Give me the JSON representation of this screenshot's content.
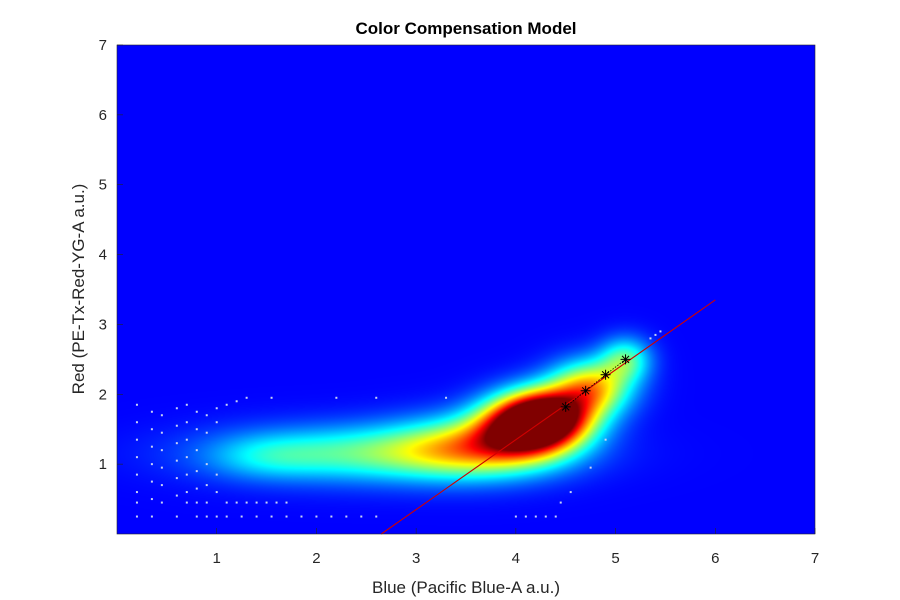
{
  "chart_data": {
    "type": "heatmap",
    "title": "Color Compensation Model",
    "xlabel": "Blue (Pacific Blue-A a.u.)",
    "ylabel": "Red (PE-Tx-Red-YG-A a.u.)",
    "xlim": [
      0,
      7
    ],
    "ylim": [
      0,
      7
    ],
    "xticks": [
      1,
      2,
      3,
      4,
      5,
      6,
      7
    ],
    "yticks": [
      1,
      2,
      3,
      4,
      5,
      6,
      7
    ],
    "colormap": "jet",
    "background_color": "#00008f",
    "density_blobs": [
      {
        "cx": 2.6,
        "cy": 1.15,
        "sx": 1.05,
        "sy": 0.28,
        "w": 0.38
      },
      {
        "cx": 3.6,
        "cy": 1.25,
        "sx": 0.55,
        "sy": 0.3,
        "w": 0.45
      },
      {
        "cx": 4.1,
        "cy": 1.5,
        "sx": 0.35,
        "sy": 0.28,
        "w": 0.75
      },
      {
        "cx": 4.3,
        "cy": 1.7,
        "sx": 0.33,
        "sy": 0.27,
        "w": 0.95
      },
      {
        "cx": 4.75,
        "cy": 2.1,
        "sx": 0.28,
        "sy": 0.27,
        "w": 0.6
      },
      {
        "cx": 5.1,
        "cy": 2.5,
        "sx": 0.18,
        "sy": 0.22,
        "w": 0.35
      },
      {
        "cx": 1.5,
        "cy": 1.1,
        "sx": 0.4,
        "sy": 0.22,
        "w": 0.12
      }
    ],
    "fit_line": {
      "x": [
        2.65,
        6.0
      ],
      "y": [
        0.0,
        3.35
      ],
      "color": "#d00000"
    },
    "markers": {
      "x": [
        4.5,
        4.7,
        4.9,
        5.1
      ],
      "y": [
        1.82,
        2.05,
        2.28,
        2.5
      ],
      "symbol": "*"
    },
    "sparse_points": [
      {
        "x": 0.2,
        "y": 1.85
      },
      {
        "x": 0.2,
        "y": 1.6
      },
      {
        "x": 0.2,
        "y": 1.35
      },
      {
        "x": 0.2,
        "y": 1.1
      },
      {
        "x": 0.2,
        "y": 0.85
      },
      {
        "x": 0.2,
        "y": 0.6
      },
      {
        "x": 0.2,
        "y": 0.45
      },
      {
        "x": 0.2,
        "y": 0.25
      },
      {
        "x": 0.35,
        "y": 1.75
      },
      {
        "x": 0.35,
        "y": 1.5
      },
      {
        "x": 0.35,
        "y": 1.25
      },
      {
        "x": 0.35,
        "y": 1.0
      },
      {
        "x": 0.35,
        "y": 0.75
      },
      {
        "x": 0.35,
        "y": 0.5
      },
      {
        "x": 0.35,
        "y": 0.25
      },
      {
        "x": 0.45,
        "y": 1.7
      },
      {
        "x": 0.45,
        "y": 1.45
      },
      {
        "x": 0.45,
        "y": 1.2
      },
      {
        "x": 0.45,
        "y": 0.95
      },
      {
        "x": 0.45,
        "y": 0.7
      },
      {
        "x": 0.45,
        "y": 0.45
      },
      {
        "x": 0.6,
        "y": 1.8
      },
      {
        "x": 0.6,
        "y": 1.55
      },
      {
        "x": 0.6,
        "y": 1.3
      },
      {
        "x": 0.6,
        "y": 1.05
      },
      {
        "x": 0.6,
        "y": 0.8
      },
      {
        "x": 0.6,
        "y": 0.55
      },
      {
        "x": 0.6,
        "y": 0.25
      },
      {
        "x": 0.7,
        "y": 1.85
      },
      {
        "x": 0.7,
        "y": 1.6
      },
      {
        "x": 0.7,
        "y": 1.35
      },
      {
        "x": 0.7,
        "y": 1.1
      },
      {
        "x": 0.7,
        "y": 0.85
      },
      {
        "x": 0.7,
        "y": 0.6
      },
      {
        "x": 0.7,
        "y": 0.45
      },
      {
        "x": 0.8,
        "y": 1.75
      },
      {
        "x": 0.8,
        "y": 1.5
      },
      {
        "x": 0.8,
        "y": 1.2
      },
      {
        "x": 0.8,
        "y": 0.9
      },
      {
        "x": 0.8,
        "y": 0.65
      },
      {
        "x": 0.8,
        "y": 0.45
      },
      {
        "x": 0.8,
        "y": 0.25
      },
      {
        "x": 0.9,
        "y": 1.7
      },
      {
        "x": 0.9,
        "y": 1.45
      },
      {
        "x": 0.9,
        "y": 1.0
      },
      {
        "x": 0.9,
        "y": 0.7
      },
      {
        "x": 0.9,
        "y": 0.45
      },
      {
        "x": 0.9,
        "y": 0.25
      },
      {
        "x": 1.0,
        "y": 1.8
      },
      {
        "x": 1.0,
        "y": 1.6
      },
      {
        "x": 1.0,
        "y": 0.85
      },
      {
        "x": 1.0,
        "y": 0.6
      },
      {
        "x": 1.0,
        "y": 0.25
      },
      {
        "x": 1.1,
        "y": 1.85
      },
      {
        "x": 1.2,
        "y": 1.9
      },
      {
        "x": 1.3,
        "y": 1.95
      },
      {
        "x": 1.55,
        "y": 1.95
      },
      {
        "x": 1.1,
        "y": 0.45
      },
      {
        "x": 1.2,
        "y": 0.45
      },
      {
        "x": 1.3,
        "y": 0.45
      },
      {
        "x": 1.4,
        "y": 0.45
      },
      {
        "x": 1.5,
        "y": 0.45
      },
      {
        "x": 1.6,
        "y": 0.45
      },
      {
        "x": 1.7,
        "y": 0.45
      },
      {
        "x": 1.1,
        "y": 0.25
      },
      {
        "x": 1.25,
        "y": 0.25
      },
      {
        "x": 1.4,
        "y": 0.25
      },
      {
        "x": 1.55,
        "y": 0.25
      },
      {
        "x": 1.7,
        "y": 0.25
      },
      {
        "x": 1.85,
        "y": 0.25
      },
      {
        "x": 2.0,
        "y": 0.25
      },
      {
        "x": 2.15,
        "y": 0.25
      },
      {
        "x": 2.3,
        "y": 0.25
      },
      {
        "x": 2.45,
        "y": 0.25
      },
      {
        "x": 2.6,
        "y": 0.25
      },
      {
        "x": 2.2,
        "y": 1.95
      },
      {
        "x": 2.6,
        "y": 1.95
      },
      {
        "x": 3.3,
        "y": 1.95
      },
      {
        "x": 4.0,
        "y": 0.25
      },
      {
        "x": 4.1,
        "y": 0.25
      },
      {
        "x": 4.2,
        "y": 0.25
      },
      {
        "x": 4.3,
        "y": 0.25
      },
      {
        "x": 4.4,
        "y": 0.25
      },
      {
        "x": 4.45,
        "y": 0.45
      },
      {
        "x": 4.55,
        "y": 0.6
      },
      {
        "x": 4.75,
        "y": 0.95
      },
      {
        "x": 4.9,
        "y": 1.35
      },
      {
        "x": 5.35,
        "y": 2.8
      },
      {
        "x": 5.4,
        "y": 2.85
      },
      {
        "x": 5.45,
        "y": 2.9
      }
    ]
  }
}
